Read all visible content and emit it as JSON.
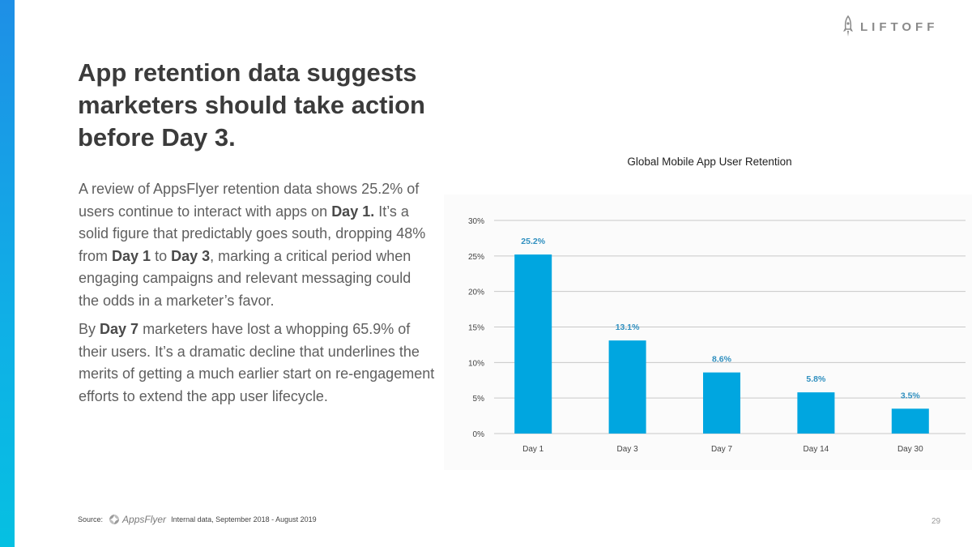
{
  "brand": {
    "logo_text": "LIFTOFF",
    "logo_icon": "rocket-icon"
  },
  "headline": {
    "lines": [
      "App retention data suggests",
      "marketers should take action",
      "before Day 3."
    ]
  },
  "body": {
    "p1": [
      {
        "t": "A review of AppsFlyer retention data shows 25.2% of users continue to interact with apps on ",
        "b": false
      },
      {
        "t": "Day 1.",
        "b": true
      },
      {
        "t": " It’s a solid figure that predictably goes south, dropping 48% from ",
        "b": false
      },
      {
        "t": "Day 1",
        "b": true
      },
      {
        "t": " to ",
        "b": false
      },
      {
        "t": "Day 3",
        "b": true
      },
      {
        "t": ", marking a critical period when engaging campaigns and relevant messaging could the odds in a marketer’s favor.",
        "b": false
      }
    ],
    "p2": [
      {
        "t": "By ",
        "b": false
      },
      {
        "t": "Day 7",
        "b": true
      },
      {
        "t": " marketers have lost a whopping 65.9% of their users. It’s a dramatic decline that underlines the merits of getting a much earlier start on re-engagement efforts to extend the app user lifecycle.",
        "b": false
      }
    ]
  },
  "chart_data": {
    "type": "bar",
    "title": "Global Mobile App User Retention",
    "categories": [
      "Day 1",
      "Day 3",
      "Day 7",
      "Day 14",
      "Day 30"
    ],
    "values": [
      25.2,
      13.1,
      8.6,
      5.8,
      3.5
    ],
    "value_labels": [
      "25.2%",
      "13.1%",
      "8.6%",
      "5.8%",
      "3.5%"
    ],
    "y_ticks": [
      0,
      5,
      10,
      15,
      20,
      25,
      30
    ],
    "y_tick_labels": [
      "0%",
      "5%",
      "10%",
      "15%",
      "20%",
      "25%",
      "30%"
    ],
    "ylim": [
      0,
      30
    ],
    "grid": true,
    "bar_color": "#00a6e0",
    "label_color": "#2f8fbf"
  },
  "source": {
    "label": "Source:",
    "logo_text": "AppsFlyer",
    "logo_icon": "appsflyer-logo-icon",
    "note": "Internal data, September 2018 - August 2019"
  },
  "page_number": "29"
}
